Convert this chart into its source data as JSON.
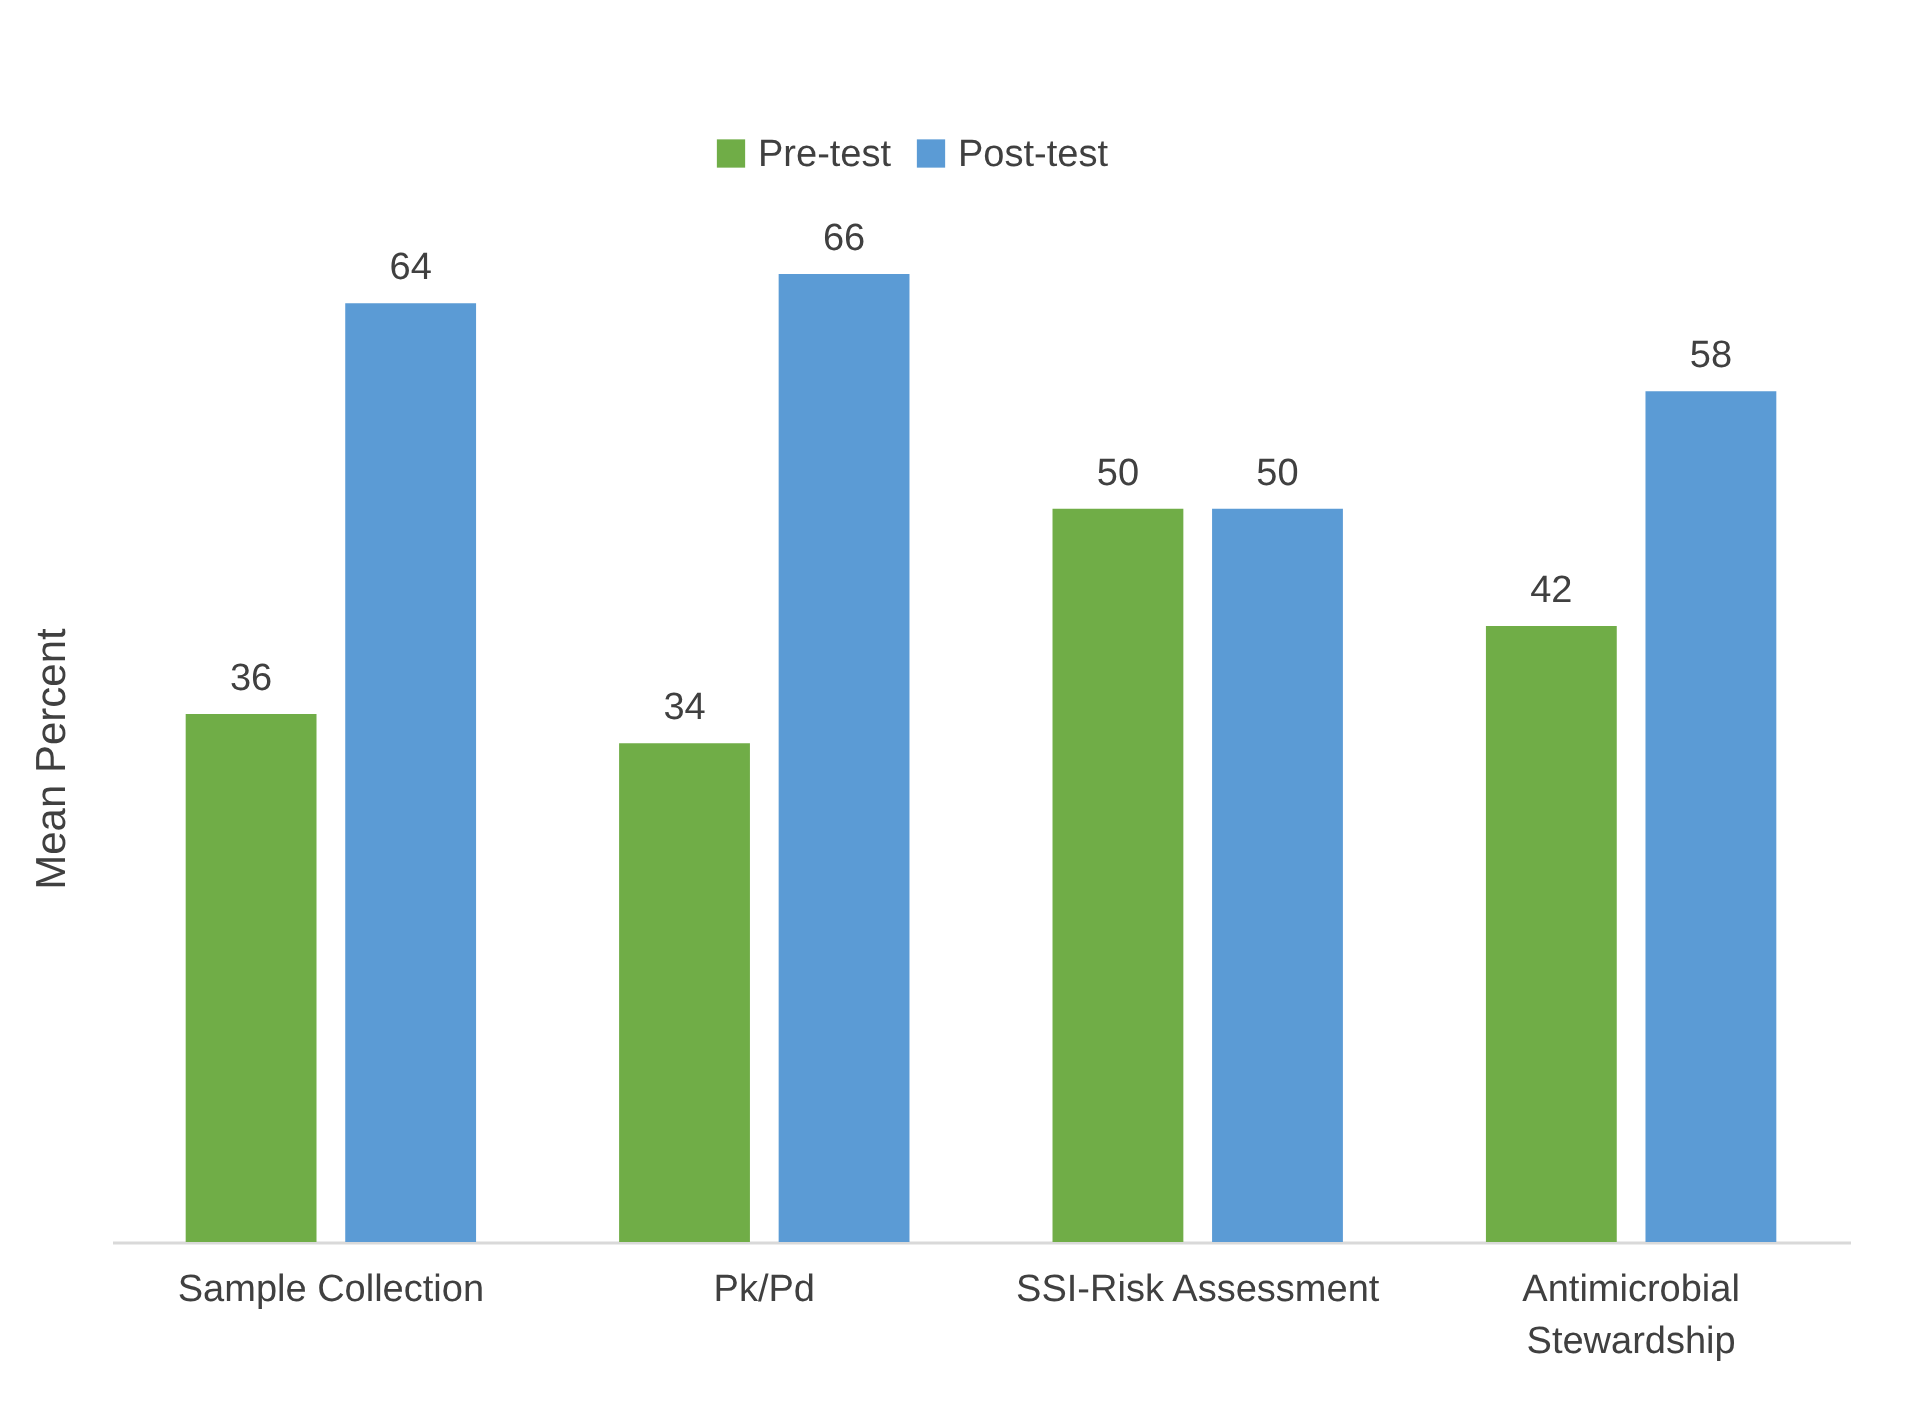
{
  "chart_data": {
    "type": "bar",
    "ylabel": "Mean Percent",
    "categories": [
      "Sample Collection",
      "Pk/Pd",
      "SSI-Risk Assessment",
      "Antimicrobial Stewardship"
    ],
    "series": [
      {
        "name": "Pre-test",
        "color": "#70ad47",
        "values": [
          36,
          34,
          50,
          42
        ]
      },
      {
        "name": "Post-test",
        "color": "#5b9bd5",
        "values": [
          64,
          66,
          50,
          58
        ]
      }
    ],
    "data_labels": true,
    "legend": "top",
    "grid": false,
    "tick_labels": "x"
  }
}
